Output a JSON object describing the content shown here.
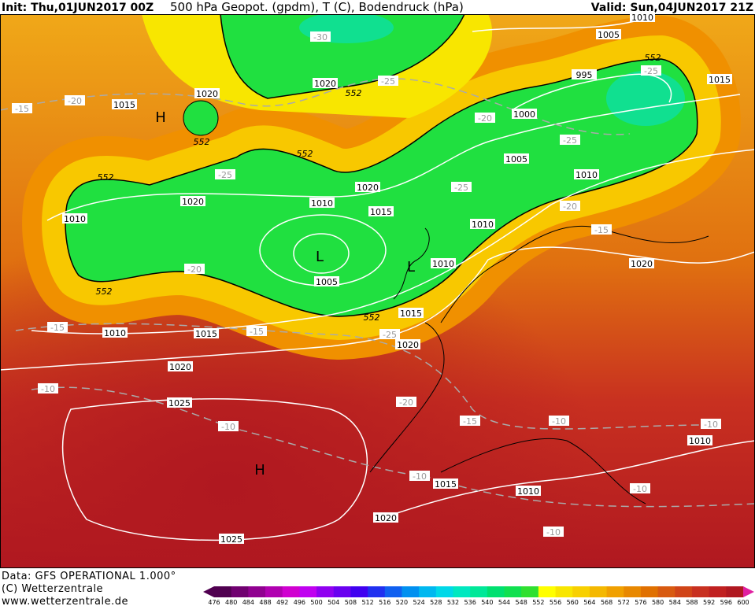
{
  "header": {
    "init": "Init: Thu,01JUN2017 00Z",
    "title": "500 hPa Geopot. (gpdm), T (C), Bodendruck (hPa)",
    "valid": "Valid: Sun,04JUN2017 21Z"
  },
  "footer": {
    "data": "Data: GFS OPERATIONAL 1.000°",
    "copyright": "(C) Wetterzentrale",
    "url": "www.wetterzentrale.de"
  },
  "colorbar": {
    "labels": [
      "476",
      "480",
      "484",
      "488",
      "492",
      "496",
      "500",
      "504",
      "508",
      "512",
      "516",
      "520",
      "524",
      "528",
      "532",
      "536",
      "540",
      "544",
      "548",
      "552",
      "556",
      "560",
      "564",
      "568",
      "572",
      "576",
      "580",
      "584",
      "588",
      "592",
      "596",
      "600"
    ],
    "colors": [
      "#500050",
      "#700070",
      "#900090",
      "#b000b0",
      "#d000d0",
      "#c000f0",
      "#9000f0",
      "#6a00f0",
      "#4000f0",
      "#2030f0",
      "#1060f0",
      "#0090f0",
      "#00b8f0",
      "#00d8e8",
      "#00e8c0",
      "#00e898",
      "#00e070",
      "#10e050",
      "#30e030",
      "#ffff00",
      "#f8e600",
      "#f8d000",
      "#f4b800",
      "#f0a000",
      "#e88800",
      "#e07000",
      "#d85a10",
      "#d04418",
      "#c83020",
      "#c02020",
      "#b01820",
      "#a01020"
    ]
  },
  "map": {
    "highs_lows": [
      "H",
      "L",
      "L",
      "H"
    ],
    "pressure_labels": [
      "1015",
      "1020",
      "1020",
      "1010",
      "1005",
      "995",
      "1015",
      "1000",
      "1005",
      "1010",
      "1020",
      "1015",
      "1010",
      "1020",
      "1010",
      "1010",
      "1010",
      "1005",
      "1015",
      "1020",
      "1010",
      "1015",
      "1020",
      "1025",
      "1020",
      "1010",
      "1015",
      "1010",
      "1020",
      "1025"
    ],
    "temperature_labels": [
      "-30",
      "-25",
      "-20",
      "-15",
      "-25",
      "-20",
      "-25",
      "-25",
      "-20",
      "-15",
      "-20",
      "-25",
      "-15",
      "-15",
      "-25",
      "-10",
      "-20",
      "-15",
      "-10",
      "-10",
      "-10",
      "-10",
      "-10",
      "-10"
    ],
    "height_labels": [
      "552",
      "552",
      "552",
      "552",
      "552",
      "552",
      "552"
    ]
  }
}
